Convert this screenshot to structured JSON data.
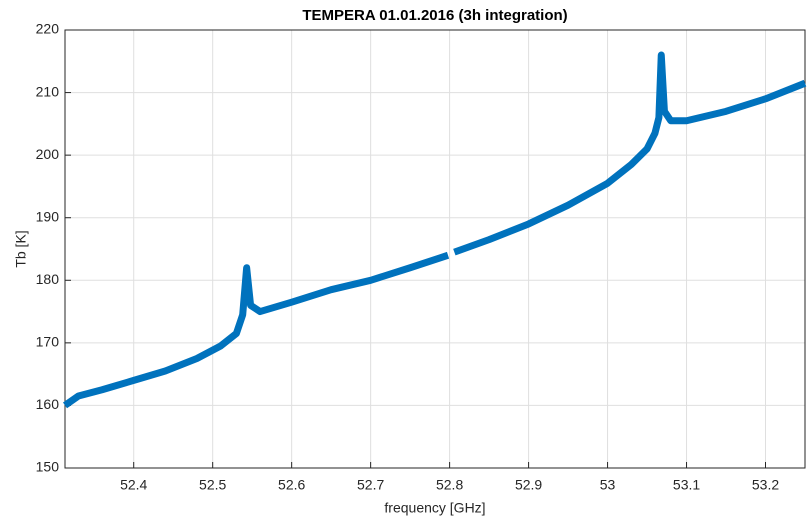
{
  "chart_data": {
    "type": "line",
    "title": "TEMPERA 01.01.2016 (3h integration)",
    "xlabel": "frequency [GHz]",
    "ylabel": "Tb [K]",
    "x": [
      52.313,
      52.33,
      52.36,
      52.4,
      52.44,
      52.48,
      52.51,
      52.53,
      52.538,
      52.543,
      52.548,
      52.56,
      52.6,
      52.65,
      52.7,
      52.75,
      52.798,
      52.802,
      52.806,
      52.85,
      52.9,
      52.95,
      53.0,
      53.03,
      53.05,
      53.06,
      53.065,
      53.068,
      53.072,
      53.08,
      53.1,
      53.15,
      53.2,
      53.25
    ],
    "series": [
      {
        "color": "#0072bd",
        "values": [
          160,
          161.5,
          162.5,
          164,
          165.5,
          167.5,
          169.5,
          171.5,
          174.5,
          182,
          176,
          175,
          176.5,
          178.5,
          180,
          182,
          184,
          null,
          184.5,
          186.5,
          189,
          192,
          195.5,
          198.5,
          201,
          203.5,
          206,
          216,
          207,
          205.5,
          205.5,
          207,
          209,
          211.5
        ]
      }
    ],
    "xlim": [
      52.313,
      53.25
    ],
    "ylim": [
      150,
      220
    ],
    "xticks": [
      52.4,
      52.5,
      52.6,
      52.7,
      52.8,
      52.9,
      53,
      53.1,
      53.2
    ],
    "yticks": [
      150,
      160,
      170,
      180,
      190,
      200,
      210,
      220
    ],
    "grid": true
  }
}
